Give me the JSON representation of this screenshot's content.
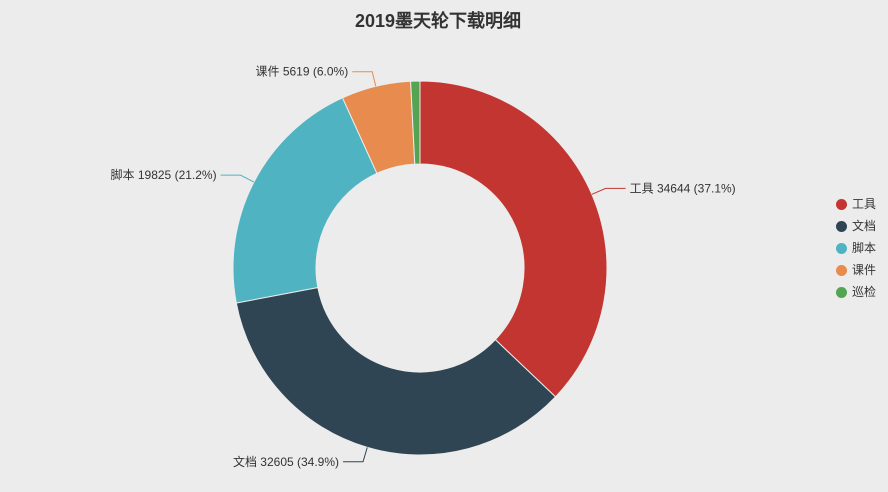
{
  "title": "2019墨天轮下载明细",
  "background_color": "#ececec",
  "chart_data": {
    "type": "pie",
    "subtype": "donut",
    "title": "2019墨天轮下载明细",
    "legend_position": "right",
    "legend": [
      "工具",
      "文档",
      "脚本",
      "课件",
      "巡检"
    ],
    "series": [
      {
        "name": "工具",
        "value": 34644,
        "percent": 37.1,
        "color": "#c23531",
        "label": "工具 34644 (37.1%)",
        "show_label": true
      },
      {
        "name": "文档",
        "value": 32605,
        "percent": 34.9,
        "color": "#2f4554",
        "label": "文档 32605 (34.9%)",
        "show_label": true
      },
      {
        "name": "脚本",
        "value": 19825,
        "percent": 21.2,
        "color": "#4fb3c1",
        "label": "脚本 19825 (21.2%)",
        "show_label": true
      },
      {
        "name": "课件",
        "value": 5619,
        "percent": 6.0,
        "color": "#e78b4e",
        "label": "课件 5619 (6.0%)",
        "show_label": true
      },
      {
        "name": "巡检",
        "value": null,
        "percent": 0.8,
        "color": "#54a454",
        "label": "",
        "show_label": false
      }
    ]
  }
}
